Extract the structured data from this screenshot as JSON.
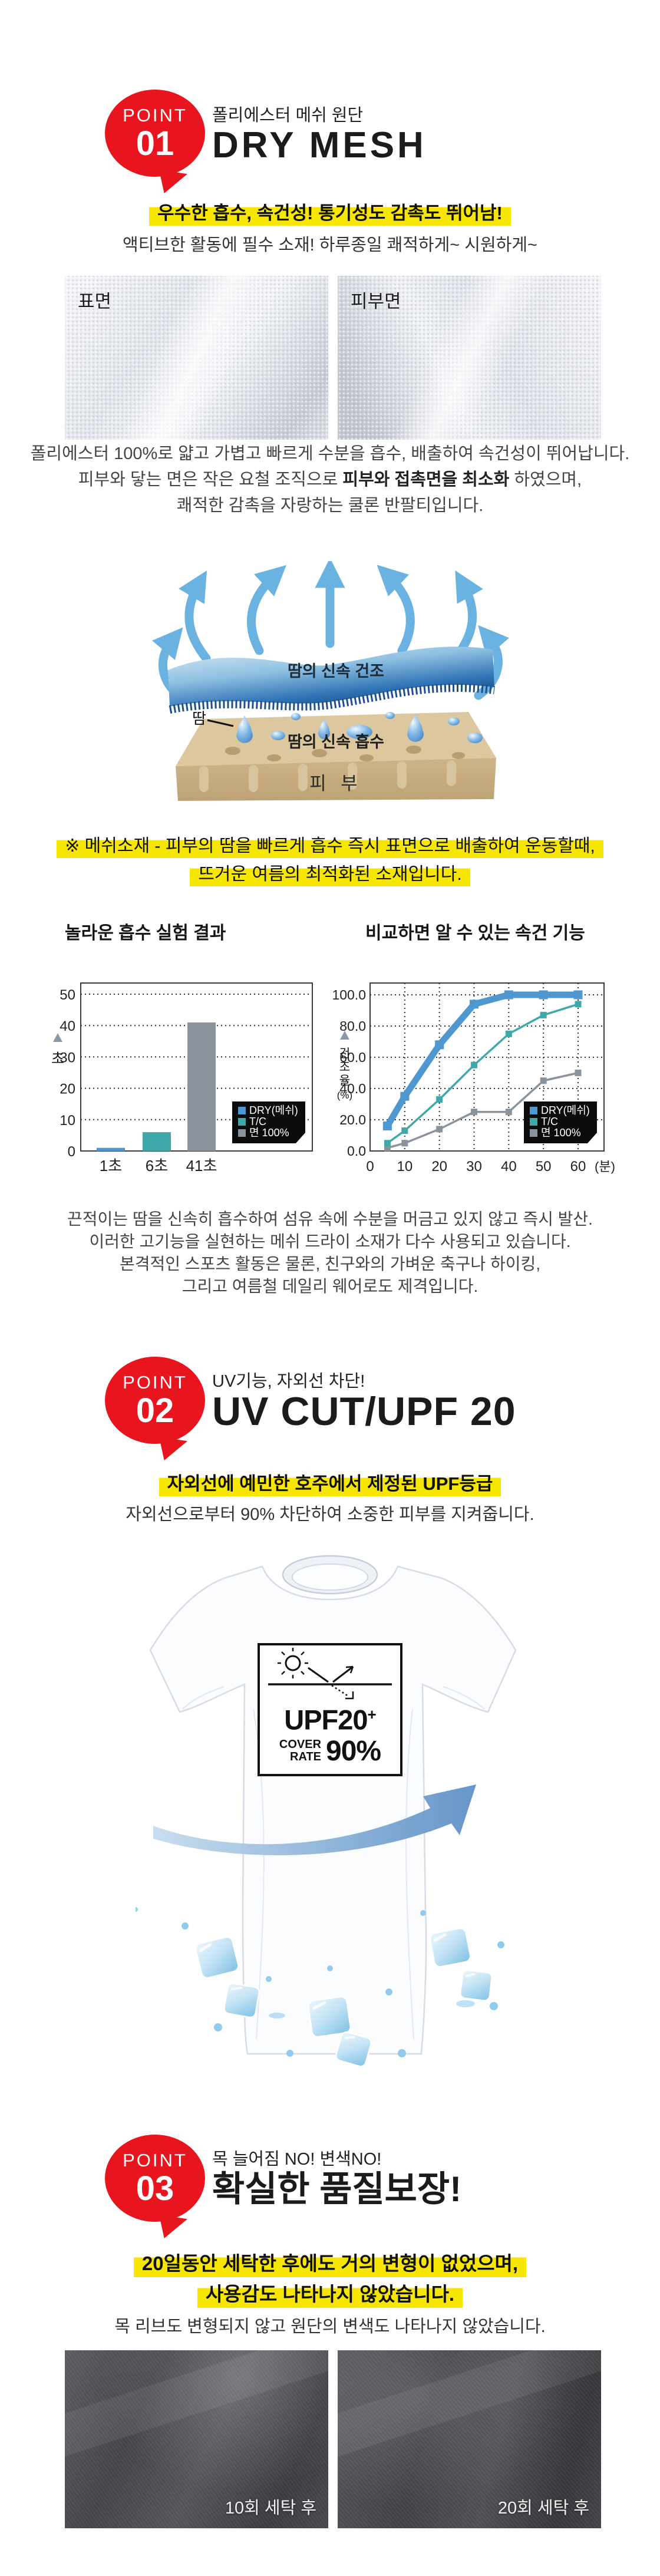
{
  "accent_red": "#e8151e",
  "highlight_yellow": "#f7e600",
  "point1": {
    "badge": {
      "label": "POINT",
      "number": "01"
    },
    "subtitle": "폴리에스터 메쉬 원단",
    "title": "DRY MESH",
    "highlight": "우수한 흡수, 속건성! 통기성도 감촉도 뛰어남!",
    "lead": "액티브한 활동에 필수 소재! 하루종일 쾌적하게~ 시원하게~",
    "fabric_labels": [
      "표면",
      "피부면"
    ],
    "desc": {
      "line1": "폴리에스터 100%로 얇고 가볍고 빠르게 수분을 흡수, 배출하여 속건성이 뛰어납니다.",
      "line2_pre": "피부와 닿는 면은 작은 요철 조직으로 ",
      "line2_bold": "피부와 접촉면을 최소화",
      "line2_post": " 하였으며,",
      "line3": "쾌적한 감촉을 자랑하는 쿨론 반팔티입니다."
    },
    "diagram": {
      "dry_label": "땀의 신속 건조",
      "sweat_label": "땀",
      "absorb_label": "땀의 신속 흡수",
      "skin_label": "피 부"
    },
    "note_lines": [
      "※ 메쉬소재 - 피부의 땀을 빠르게 흡수 즉시 표면으로 배출하여 운동할때,",
      "뜨거운 여름의 최적화된 소재입니다."
    ],
    "closing_lines": [
      "끈적이는 땀을 신속히 흡수하여 섬유 속에 수분을 머금고 있지 않고 즉시 발산.",
      "이러한 고기능을 실현하는 메쉬 드라이 소재가 다수 사용되고 있습니다.",
      "본격적인 스포츠 활동은 물론, 친구와의 가벼운 축구나 하이킹,",
      "그리고 여름철 데일리 웨어로도 제격입니다."
    ]
  },
  "chart_data": [
    {
      "type": "bar",
      "title": "놀라운 흡수 실험 결과",
      "ylabel": "초",
      "ylim": [
        0,
        50
      ],
      "yticks": [
        0,
        10,
        20,
        30,
        40,
        50
      ],
      "categories": [
        "1초",
        "6초",
        "41초"
      ],
      "values": [
        1,
        6,
        41
      ],
      "bar_colors": [
        "#4e97cf",
        "#3fa9a9",
        "#8a939b"
      ],
      "grid": "dotted-horizontal",
      "legend_position": "right-bottom",
      "legend": [
        {
          "label": "DRY(메쉬)",
          "color": "#4e97cf"
        },
        {
          "label": "T/C",
          "color": "#3fa9a9"
        },
        {
          "label": "면 100%",
          "color": "#8a939b"
        }
      ]
    },
    {
      "type": "line",
      "title": "비교하면 알 수 있는 속건 기능",
      "ylabel": "건조율(%)",
      "xlabel": "(분)",
      "ylim": [
        0,
        100
      ],
      "yticks": [
        "0.0",
        "20.0",
        "40.0",
        "60.0",
        "80.0",
        "100.0"
      ],
      "xticks": [
        0,
        10,
        20,
        30,
        40,
        50,
        60
      ],
      "x": [
        5,
        10,
        20,
        30,
        40,
        50,
        60
      ],
      "grid": "dotted-both",
      "legend_position": "right-bottom",
      "series": [
        {
          "name": "DRY(메쉬)",
          "color": "#4e97cf",
          "thick": true,
          "values": [
            16,
            35,
            68,
            94,
            100,
            100,
            100
          ]
        },
        {
          "name": "T/C",
          "color": "#3fa9a9",
          "thick": false,
          "values": [
            5,
            13,
            33,
            55,
            75,
            87,
            94
          ]
        },
        {
          "name": "면 100%",
          "color": "#8a939b",
          "thick": false,
          "values": [
            2,
            5,
            14,
            25,
            25,
            45,
            50
          ]
        }
      ],
      "legend": [
        {
          "label": "DRY(메쉬)",
          "color": "#4e97cf"
        },
        {
          "label": "T/C",
          "color": "#3fa9a9"
        },
        {
          "label": "면 100%",
          "color": "#8a939b"
        }
      ]
    }
  ],
  "point2": {
    "badge": {
      "label": "POINT",
      "number": "02"
    },
    "subtitle": "UV기능, 자외선 차단!",
    "title": "UV CUT/UPF 20",
    "highlight": "자외선에 예민한 호주에서 제정된 UPF등급",
    "lead": "자외선으로부터 90% 차단하여 소중한 피부를 지켜줍니다.",
    "upf_badge": {
      "rating": "UPF20",
      "plus": "+",
      "cover_line1": "COVER",
      "cover_line2": "RATE",
      "rate": "90%"
    }
  },
  "point3": {
    "badge": {
      "label": "POINT",
      "number": "03"
    },
    "subtitle": "목 늘어짐 NO! 변색NO!",
    "title": "확실한 품질보장!",
    "highlight_lines": [
      "20일동안 세탁한 후에도 거의 변형이 없었으며,",
      "사용감도 나타나지 않았습니다."
    ],
    "lead": "목 리브도 변형되지 않고 원단의 변색도 나타나지 않았습니다.",
    "photo_labels": [
      "10회 세탁 후",
      "20회 세탁 후"
    ]
  }
}
